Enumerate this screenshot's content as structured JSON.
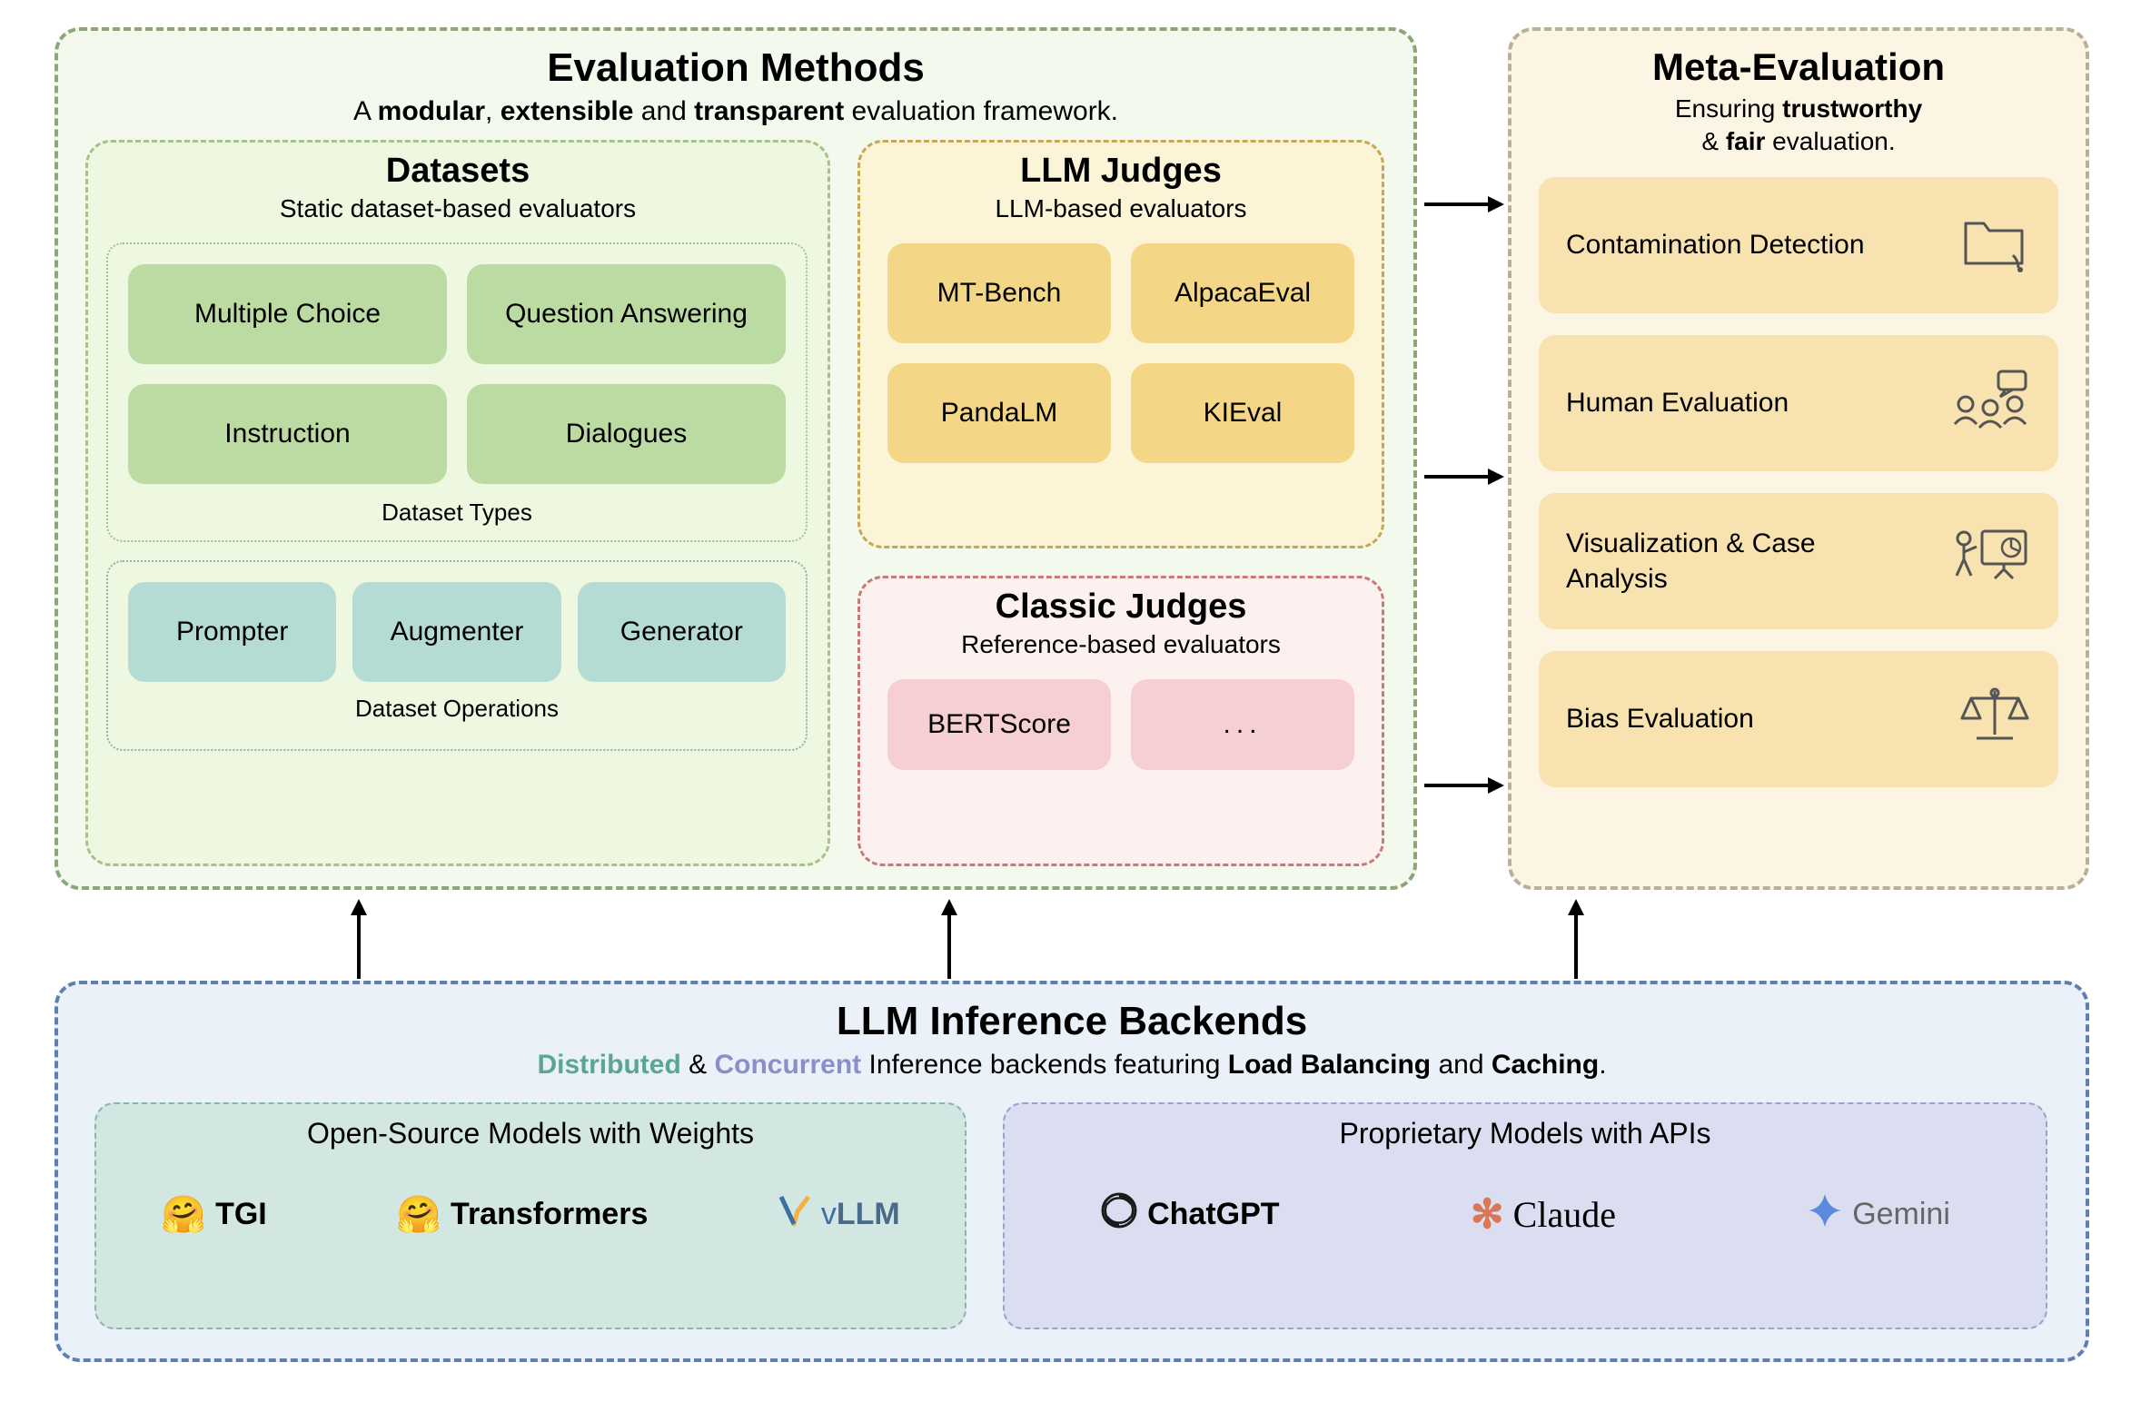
{
  "colors": {
    "eval_bg": "#f3faed",
    "eval_border": "#8ba679",
    "datasets_bg": "#eef7df",
    "datasets_border": "#a8c08a",
    "dataset_type_pill": "#bbdba2",
    "dataset_op_pill": "#b5dcd4",
    "llm_judges_bg": "#fcf4d7",
    "llm_judges_border": "#c4a857",
    "llm_judge_pill": "#f4d687",
    "classic_bg": "#fdf1f0",
    "classic_border": "#c77b77",
    "classic_pill": "#f6cfd2",
    "meta_bg": "#fdf5e4",
    "meta_border": "#b8b09a",
    "meta_pill": "#f7e2b0",
    "backends_bg": "#eaf1f9",
    "backends_border": "#5f7fb0",
    "open_models_bg": "#d2e7e2",
    "open_models_border": "#8db3aa",
    "prop_models_bg": "#dadef0",
    "prop_models_border": "#9ba1c9",
    "text": "#1a1a1a",
    "distributed": "#5aa693",
    "concurrent": "#8b8fc9"
  },
  "evaluation": {
    "title": "Evaluation Methods",
    "subtitle_pre": "A ",
    "subtitle_b1": "modular",
    "subtitle_mid1": ", ",
    "subtitle_b2": "extensible",
    "subtitle_mid2": " and ",
    "subtitle_b3": "transparent",
    "subtitle_post": " evaluation framework."
  },
  "datasets": {
    "title": "Datasets",
    "subtitle": "Static dataset-based evaluators",
    "types_label": "Dataset Types",
    "ops_label": "Dataset Operations",
    "types": [
      "Multiple Choice",
      "Question Answering",
      "Instruction",
      "Dialogues"
    ],
    "ops": [
      "Prompter",
      "Augmenter",
      "Generator"
    ]
  },
  "llm_judges": {
    "title": "LLM Judges",
    "subtitle": "LLM-based evaluators",
    "items": [
      "MT-Bench",
      "AlpacaEval",
      "PandaLM",
      "KIEval"
    ]
  },
  "classic": {
    "title": "Classic Judges",
    "subtitle": "Reference-based evaluators",
    "items": [
      "BERTScore",
      "..."
    ]
  },
  "meta": {
    "title": "Meta-Evaluation",
    "subtitle_pre": "Ensuring ",
    "subtitle_b1": "trustworthy",
    "subtitle_mid": " & ",
    "subtitle_b2": "fair",
    "subtitle_post": " evaluation.",
    "items": [
      "Contamination Detection",
      "Human Evaluation",
      "Visualization & Case Analysis",
      "Bias Evaluation"
    ]
  },
  "backends": {
    "title": "LLM Inference Backends",
    "sub_distributed": "Distributed",
    "sub_amp": " & ",
    "sub_concurrent": "Concurrent",
    "sub_mid": " Inference backends featuring ",
    "sub_b1": "Load Balancing",
    "sub_and": " and ",
    "sub_b2": "Caching",
    "sub_end": ".",
    "open_title": "Open-Source Models with Weights",
    "prop_title": "Proprietary Models with APIs",
    "open_items": [
      "TGI",
      "Transformers",
      "vLLM"
    ],
    "prop_items": [
      "ChatGPT",
      "Claude",
      "Gemini"
    ]
  },
  "fontsize": {
    "main_title": 44,
    "panel_title": 38,
    "subtitle": 30,
    "pill": 30,
    "small_label": 26
  }
}
